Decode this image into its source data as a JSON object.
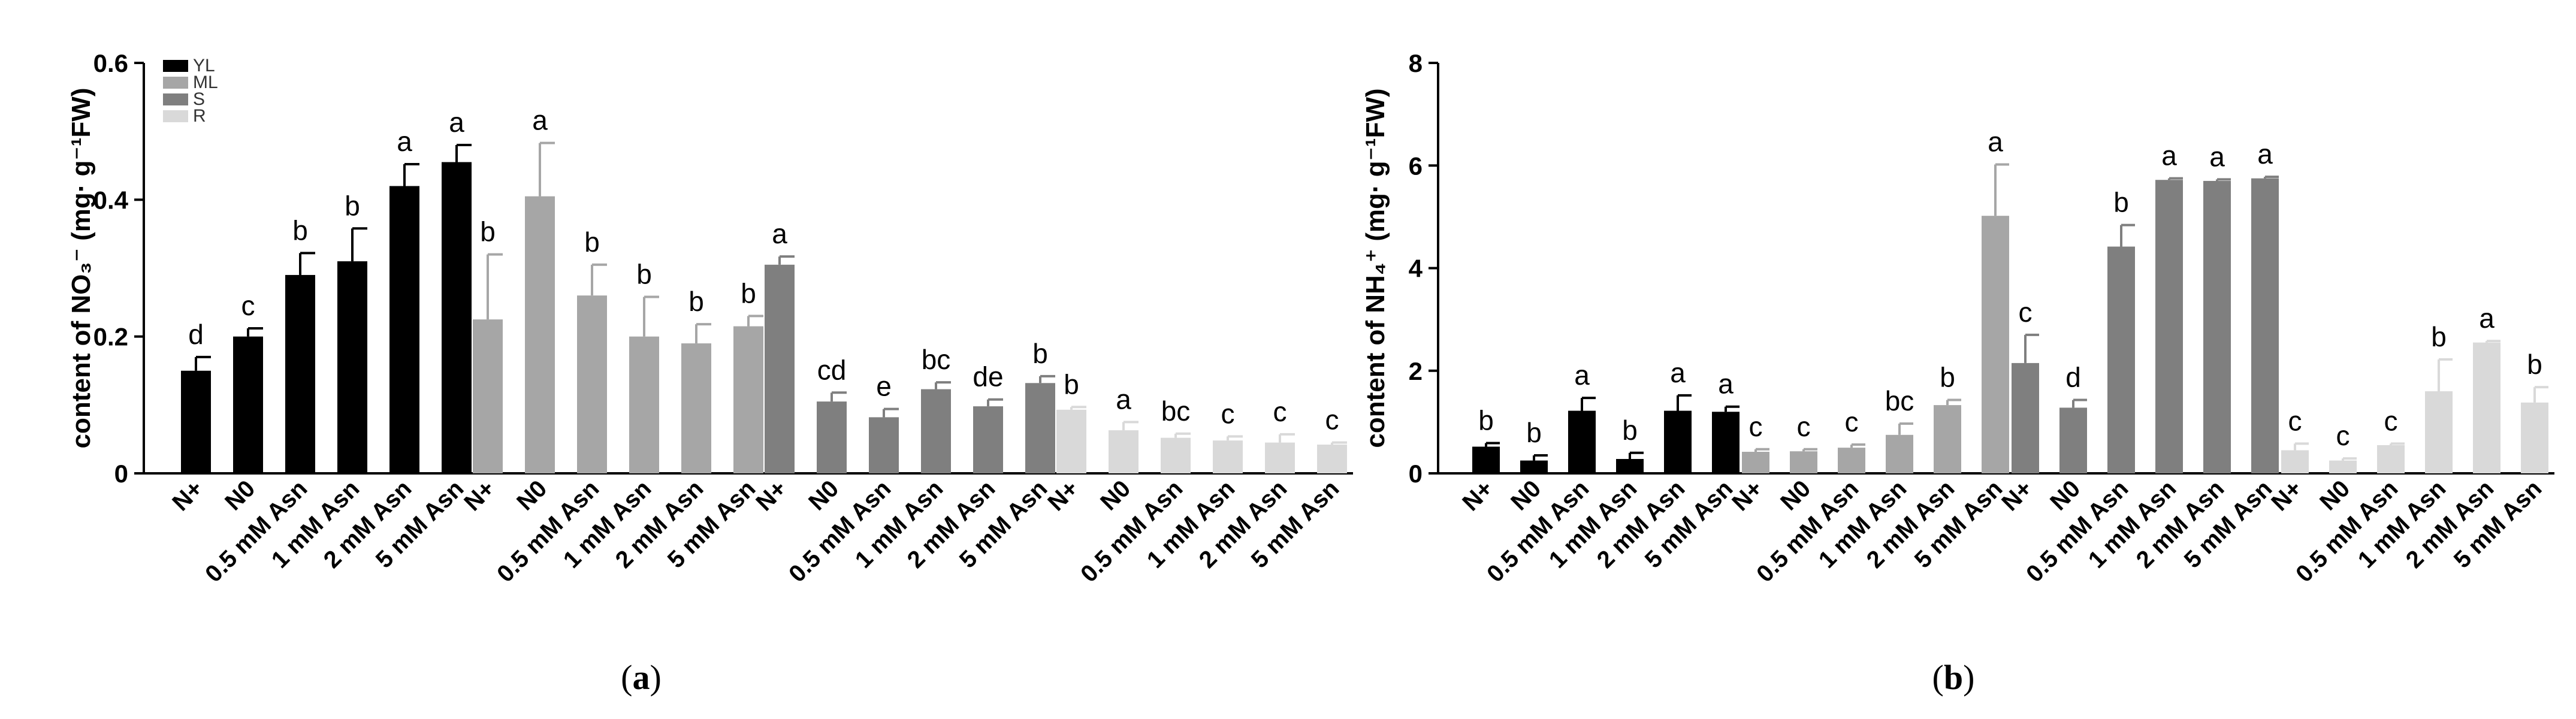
{
  "colors": {
    "YL": "#000000",
    "ML": "#a6a6a6",
    "S": "#7f7f7f",
    "R": "#d9d9d9"
  },
  "chart_data": [
    {
      "type": "bar",
      "panel_label": "a",
      "ylabel": "content of NO₃⁻ (mg· g⁻¹FW)",
      "ylim": [
        0,
        0.6
      ],
      "yticks": [
        "0",
        "0.2",
        "0.4",
        "0.6"
      ],
      "legend": {
        "placement": "top-left",
        "entries": [
          "YL",
          "ML",
          "S",
          "R"
        ]
      },
      "categories": [
        "N+",
        "N0",
        "0.5 mM Asn",
        "1 mM Asn",
        "2 mM Asn",
        "5 mM Asn"
      ],
      "series": [
        {
          "name": "YL",
          "values": [
            0.15,
            0.2,
            0.29,
            0.31,
            0.42,
            0.455
          ],
          "errors": [
            0.02,
            0.012,
            0.032,
            0.048,
            0.032,
            0.025
          ],
          "letters": [
            "d",
            "c",
            "b",
            "b",
            "a",
            "a"
          ]
        },
        {
          "name": "ML",
          "values": [
            0.225,
            0.405,
            0.26,
            0.2,
            0.19,
            0.215
          ],
          "errors": [
            0.095,
            0.078,
            0.045,
            0.058,
            0.028,
            0.015
          ],
          "letters": [
            "b",
            "a",
            "b",
            "b",
            "b",
            "b"
          ]
        },
        {
          "name": "S",
          "values": [
            0.305,
            0.105,
            0.082,
            0.123,
            0.098,
            0.132
          ],
          "errors": [
            0.012,
            0.013,
            0.012,
            0.01,
            0.01,
            0.01
          ],
          "letters": [
            "a",
            "cd",
            "e",
            "bc",
            "de",
            "b"
          ]
        },
        {
          "name": "R",
          "values": [
            0.093,
            0.063,
            0.052,
            0.048,
            0.045,
            0.042
          ],
          "errors": [
            0.004,
            0.012,
            0.006,
            0.006,
            0.012,
            0.003
          ],
          "letters": [
            "b",
            "a",
            "bc",
            "c",
            "c",
            "c"
          ]
        }
      ]
    },
    {
      "type": "bar",
      "panel_label": "b",
      "ylabel": "content of NH₄⁺ (mg· g⁻¹FW)",
      "ylim": [
        0,
        8
      ],
      "yticks": [
        "0",
        "2",
        "4",
        "6",
        "8"
      ],
      "categories": [
        "N+",
        "N0",
        "0.5 mM Asn",
        "1 mM Asn",
        "2 mM Asn",
        "5 mM Asn"
      ],
      "series": [
        {
          "name": "YL",
          "values": [
            0.52,
            0.25,
            1.22,
            0.28,
            1.22,
            1.2
          ],
          "errors": [
            0.07,
            0.1,
            0.25,
            0.12,
            0.3,
            0.1
          ],
          "letters": [
            "b",
            "b",
            "a",
            "b",
            "a",
            "a"
          ]
        },
        {
          "name": "ML",
          "values": [
            0.42,
            0.43,
            0.5,
            0.75,
            1.33,
            5.02
          ],
          "errors": [
            0.05,
            0.04,
            0.06,
            0.22,
            0.1,
            1.0
          ],
          "letters": [
            "c",
            "c",
            "c",
            "bc",
            "b",
            "a"
          ]
        },
        {
          "name": "S",
          "values": [
            2.15,
            1.28,
            4.42,
            5.72,
            5.7,
            5.75
          ],
          "errors": [
            0.55,
            0.15,
            0.42,
            0.03,
            0.03,
            0.03
          ],
          "letters": [
            "c",
            "d",
            "b",
            "a",
            "a",
            "a"
          ]
        },
        {
          "name": "R",
          "values": [
            0.45,
            0.25,
            0.55,
            1.6,
            2.55,
            1.38
          ],
          "errors": [
            0.13,
            0.04,
            0.03,
            0.62,
            0.03,
            0.3
          ],
          "letters": [
            "c",
            "c",
            "c",
            "b",
            "a",
            "b"
          ]
        }
      ]
    }
  ]
}
